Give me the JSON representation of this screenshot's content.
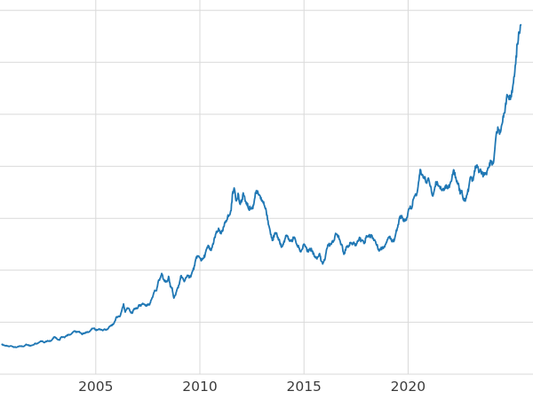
{
  "figure": {
    "background": "#ffffff"
  },
  "chart_data": {
    "type": "line",
    "title": "",
    "xlabel": "",
    "ylabel": "",
    "line_color": "#1f77b4",
    "grid_color": "#d9d9d9",
    "tick_label_color": "#3b3b3b",
    "grid": true,
    "legend": false,
    "x_range": [
      2000.4,
      2026.0
    ],
    "y_range": [
      0,
      3600
    ],
    "x_ticks": [
      {
        "value": 2005,
        "label": "2005"
      },
      {
        "value": 2010,
        "label": "2010"
      },
      {
        "value": 2015,
        "label": "2015"
      },
      {
        "value": 2020,
        "label": "2020"
      }
    ],
    "y_gridlines": [
      0,
      500,
      1000,
      1500,
      2000,
      2500,
      3000,
      3500
    ],
    "x_start": 2000.5,
    "x_step": 0.0833333,
    "values": [
      286,
      279,
      274,
      270,
      266,
      272,
      266,
      261,
      258,
      263,
      268,
      270,
      267,
      273,
      287,
      281,
      275,
      277,
      282,
      296,
      294,
      303,
      314,
      319,
      305,
      311,
      320,
      317,
      320,
      334,
      357,
      351,
      335,
      328,
      355,
      357,
      352,
      366,
      380,
      377,
      390,
      408,
      414,
      404,
      409,
      401,
      384,
      393,
      399,
      404,
      406,
      421,
      440,
      443,
      424,
      426,
      435,
      429,
      420,
      433,
      425,
      438,
      457,
      471,
      477,
      511,
      551,
      556,
      558,
      612,
      676,
      597,
      635,
      633,
      600,
      586,
      628,
      631,
      632,
      666,
      656,
      681,
      668,
      656,
      666,
      667,
      714,
      756,
      807,
      804,
      890,
      923,
      969,
      911,
      889,
      890,
      941,
      840,
      830,
      732,
      762,
      823,
      859,
      944,
      925,
      891,
      930,
      947,
      935,
      950,
      998,
      1044,
      1128,
      1136,
      1119,
      1096,
      1114,
      1150,
      1206,
      1234,
      1194,
      1217,
      1272,
      1343,
      1371,
      1392,
      1357,
      1374,
      1425,
      1475,
      1513,
      1530,
      1574,
      1757,
      1773,
      1667,
      1740,
      1641,
      1657,
      1744,
      1675,
      1651,
      1592,
      1599,
      1591,
      1628,
      1746,
      1748,
      1723,
      1686,
      1672,
      1629,
      1594,
      1486,
      1415,
      1344,
      1287,
      1348,
      1349,
      1317,
      1277,
      1222,
      1245,
      1301,
      1337,
      1299,
      1289,
      1280,
      1312,
      1297,
      1238,
      1223,
      1177,
      1202,
      1252,
      1228,
      1179,
      1198,
      1200,
      1182,
      1131,
      1118,
      1126,
      1160,
      1087,
      1069,
      1098,
      1201,
      1247,
      1243,
      1261,
      1277,
      1338,
      1341,
      1328,
      1267,
      1239,
      1153,
      1193,
      1235,
      1232,
      1267,
      1247,
      1261,
      1238,
      1284,
      1316,
      1281,
      1283,
      1265,
      1332,
      1331,
      1326,
      1336,
      1304,
      1282,
      1239,
      1202,
      1199,
      1216,
      1222,
      1251,
      1293,
      1321,
      1302,
      1287,
      1285,
      1360,
      1414,
      1501,
      1512,
      1496,
      1472,
      1481,
      1562,
      1598,
      1592,
      1684,
      1717,
      1733,
      1844,
      1970,
      1923,
      1901,
      1867,
      1859,
      1868,
      1809,
      1719,
      1763,
      1851,
      1836,
      1808,
      1785,
      1778,
      1778,
      1821,
      1788,
      1818,
      1857,
      1949,
      1938,
      1849,
      1837,
      1734,
      1766,
      1682,
      1665,
      1726,
      1798,
      1899,
      1856,
      1914,
      2001,
      1993,
      1943,
      1952,
      1919,
      1916,
      1923,
      1985,
      2035,
      2035,
      2025,
      2161,
      2332,
      2352,
      2328,
      2399,
      2471,
      2569,
      2691,
      2653,
      2644,
      2710,
      2860,
      2985,
      3180,
      3290,
      3360
    ]
  }
}
